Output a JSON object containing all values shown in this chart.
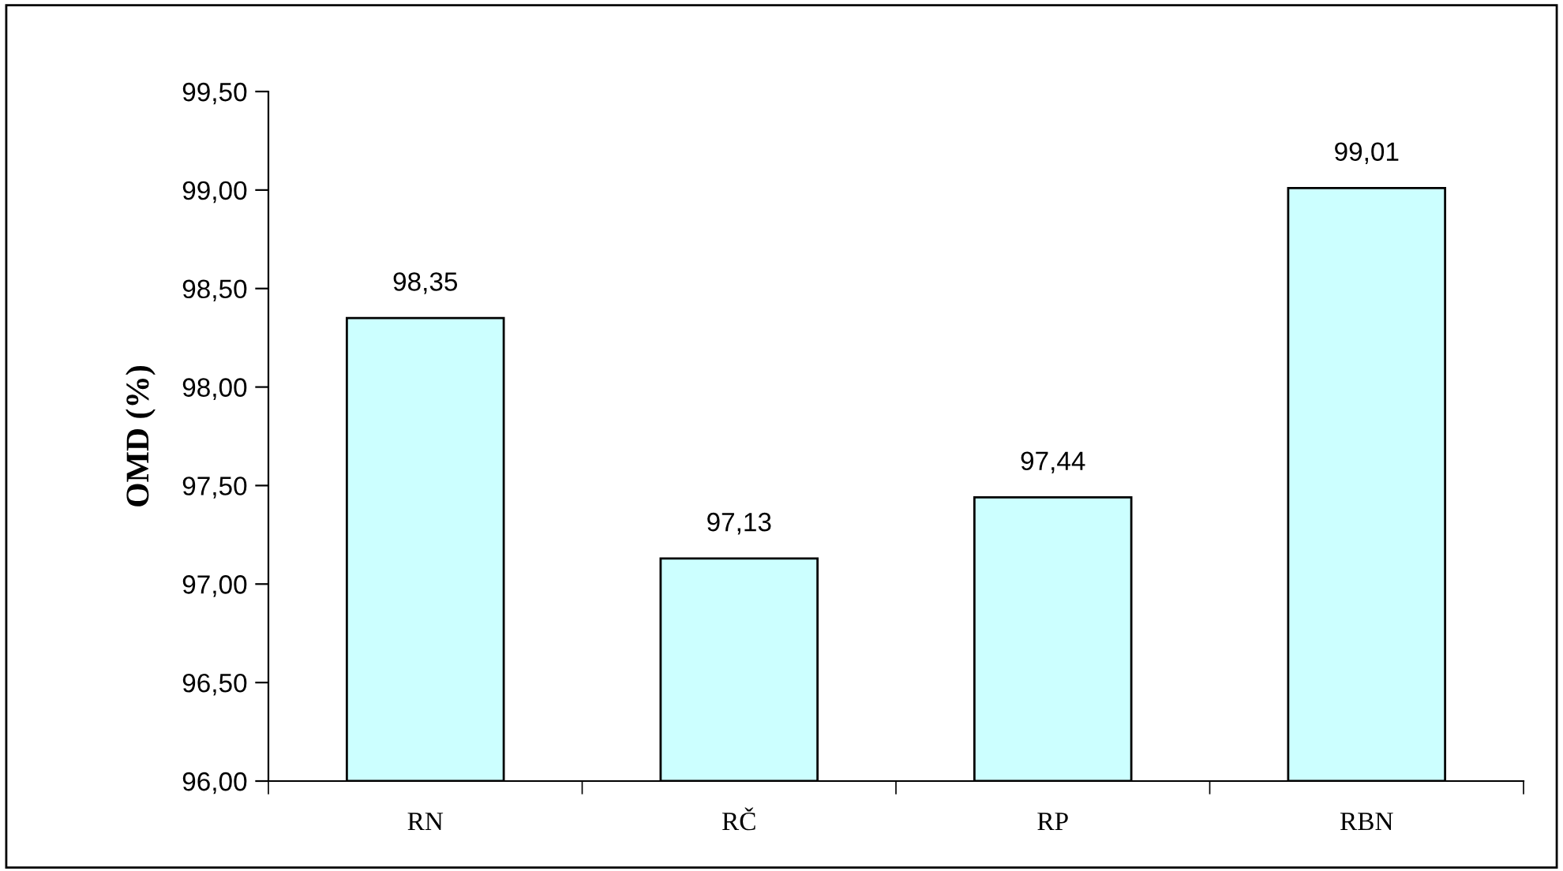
{
  "chart_data": {
    "type": "bar",
    "ylabel": "OMD (%)",
    "categories": [
      "RN",
      "RČ",
      "RP",
      "RBN"
    ],
    "values": [
      98.35,
      97.13,
      97.44,
      99.01
    ],
    "color": "#ccffff",
    "value_labels": [
      "98,35",
      "97,13",
      "97,44",
      "99,01"
    ],
    "ylim": [
      96.0,
      99.5
    ],
    "yticks": [
      {
        "value": 96.0,
        "label": "96,00"
      },
      {
        "value": 96.5,
        "label": "96,50"
      },
      {
        "value": 97.0,
        "label": "97,00"
      },
      {
        "value": 97.5,
        "label": "97,50"
      },
      {
        "value": 98.0,
        "label": "98,00"
      },
      {
        "value": 98.5,
        "label": "98,50"
      },
      {
        "value": 99.0,
        "label": "99,00"
      },
      {
        "value": 99.5,
        "label": "99,50"
      }
    ],
    "grid": false,
    "legend": false
  }
}
